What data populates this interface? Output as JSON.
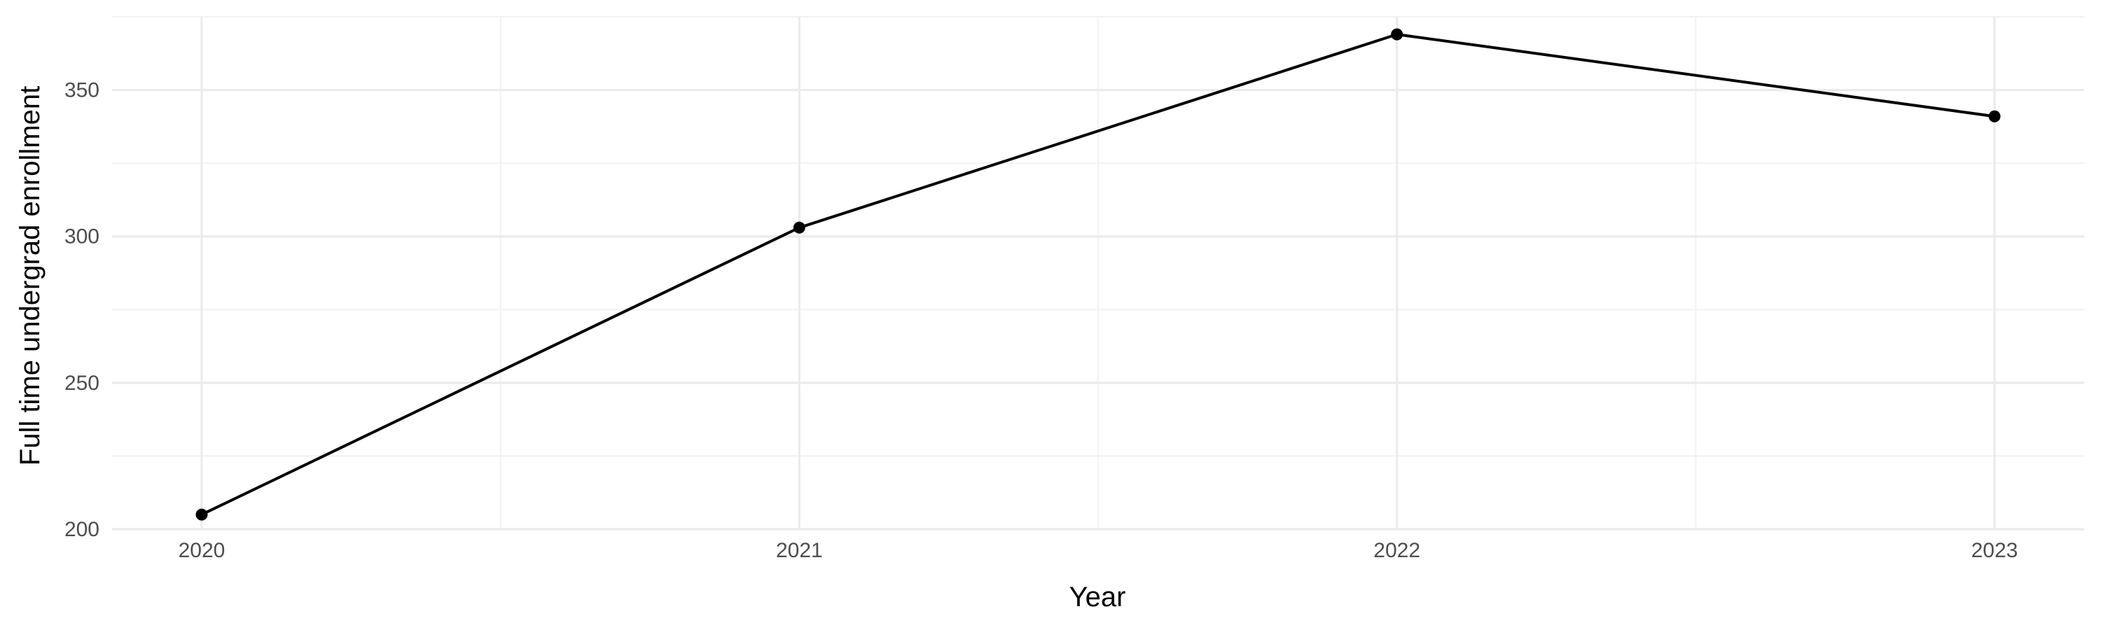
{
  "chart_data": {
    "type": "line",
    "title": "",
    "xlabel": "Year",
    "ylabel": "Full time undergrad enrollment",
    "x": [
      2020,
      2021,
      2022,
      2023
    ],
    "x_ticks": [
      "2020",
      "2021",
      "2022",
      "2023"
    ],
    "xlim": [
      2019.85,
      2023.15
    ],
    "y_ticks": [
      200,
      250,
      300,
      350
    ],
    "ylim": [
      200,
      375
    ],
    "grid": true,
    "legend": "none",
    "series": [
      {
        "values": [
          205,
          303,
          369,
          341
        ],
        "color": "#000000"
      }
    ]
  }
}
